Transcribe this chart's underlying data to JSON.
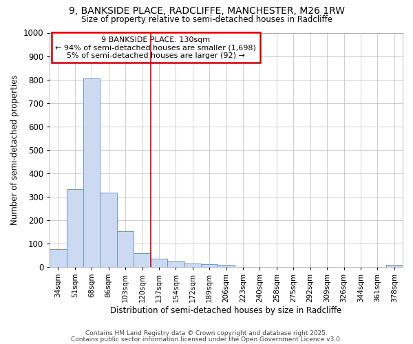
{
  "title_line1": "9, BANKSIDE PLACE, RADCLIFFE, MANCHESTER, M26 1RW",
  "title_line2": "Size of property relative to semi-detached houses in Radcliffe",
  "xlabel": "Distribution of semi-detached houses by size in Radcliffe",
  "ylabel": "Number of semi-detached properties",
  "categories": [
    "34sqm",
    "51sqm",
    "68sqm",
    "86sqm",
    "103sqm",
    "120sqm",
    "137sqm",
    "154sqm",
    "172sqm",
    "189sqm",
    "206sqm",
    "223sqm",
    "240sqm",
    "258sqm",
    "275sqm",
    "292sqm",
    "309sqm",
    "326sqm",
    "344sqm",
    "361sqm",
    "378sqm"
  ],
  "values": [
    75,
    330,
    805,
    318,
    152,
    57,
    35,
    22,
    15,
    10,
    8,
    0,
    0,
    0,
    0,
    0,
    0,
    0,
    0,
    0,
    8
  ],
  "bar_color": "#ccd9f0",
  "bar_edge_color": "#6699cc",
  "ylim": [
    0,
    1000
  ],
  "yticks": [
    0,
    100,
    200,
    300,
    400,
    500,
    600,
    700,
    800,
    900,
    1000
  ],
  "red_line_x": 5.5,
  "annotation_title": "9 BANKSIDE PLACE: 130sqm",
  "annotation_line1": "← 94% of semi-detached houses are smaller (1,698)",
  "annotation_line2": "5% of semi-detached houses are larger (92) →",
  "annotation_box_color": "#cc0000",
  "footer_line1": "Contains HM Land Registry data © Crown copyright and database right 2025.",
  "footer_line2": "Contains public sector information licensed under the Open Government Licence v3.0.",
  "bg_color": "#ffffff",
  "plot_bg_color": "#ffffff",
  "grid_color": "#bbbbbb"
}
